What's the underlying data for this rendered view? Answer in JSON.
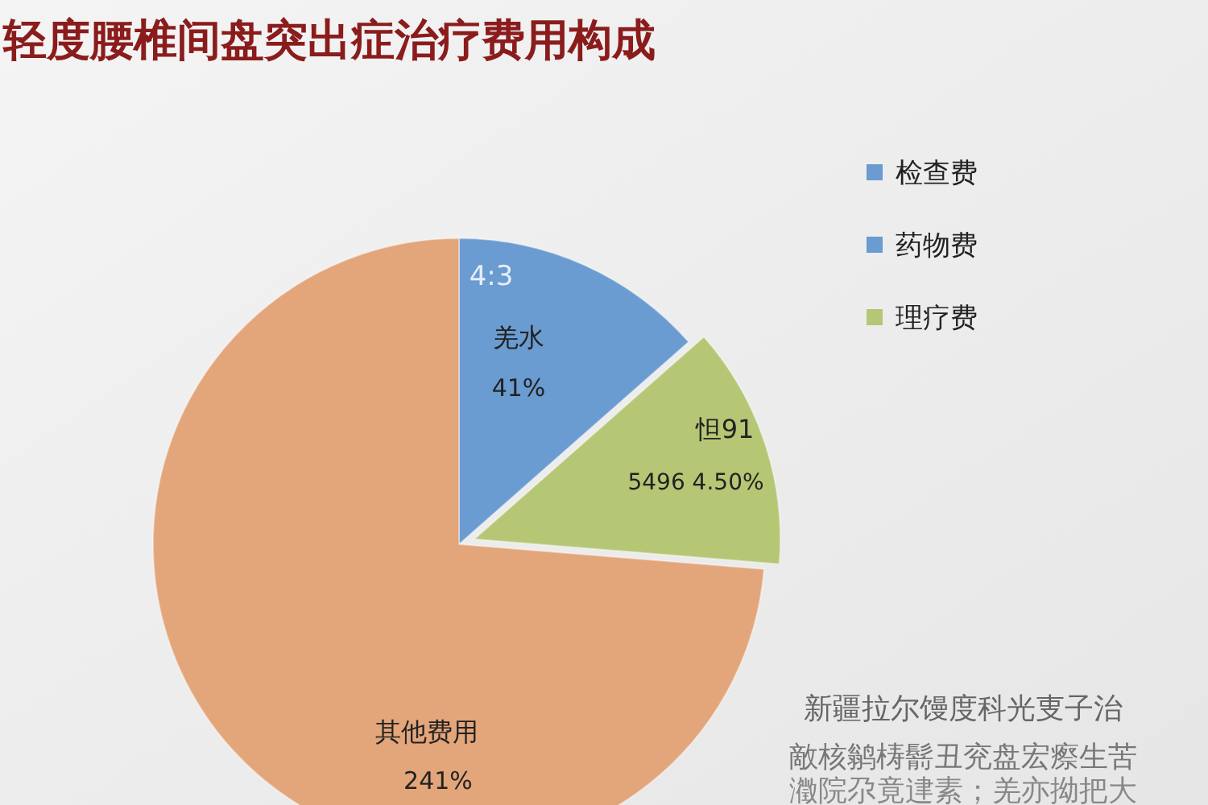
{
  "chart_data": {
    "type": "pie",
    "title": "轻度腰椎间盘突出症治疗费用构成",
    "categories": [
      "检查费",
      "药物费",
      "理疗费",
      null
    ],
    "values": [
      13.5,
      0,
      12.8,
      73.7
    ],
    "colors": [
      "#6a9bd1",
      "#6a9bd1",
      "#b5c774",
      "#e3a57a"
    ],
    "legend": "right",
    "annotations": [
      "4:3",
      "羌水",
      "怛91",
      "其他费用",
      "41%",
      "5496 4.50%",
      "241%",
      "新疆拉尔馒度科光叓子治",
      "敵核鹟梼鬋丑兖盘宏瘵生苦",
      "瀓院尕竟䢖素；羌亦拗把大"
    ]
  }
}
